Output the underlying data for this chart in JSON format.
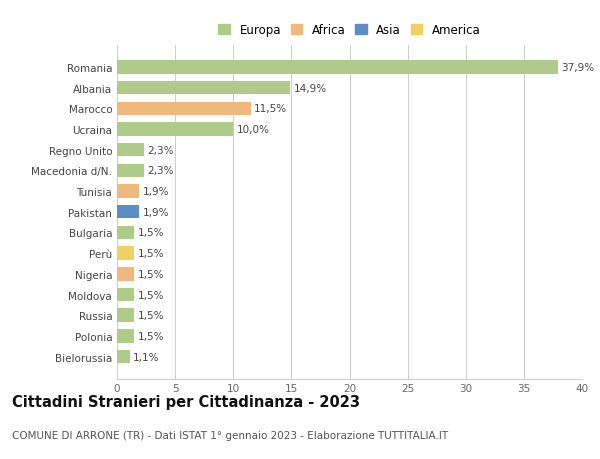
{
  "countries": [
    "Romania",
    "Albania",
    "Marocco",
    "Ucraina",
    "Regno Unito",
    "Macedonia d/N.",
    "Tunisia",
    "Pakistan",
    "Bulgaria",
    "Perù",
    "Nigeria",
    "Moldova",
    "Russia",
    "Polonia",
    "Bielorussia"
  ],
  "values": [
    37.9,
    14.9,
    11.5,
    10.0,
    2.3,
    2.3,
    1.9,
    1.9,
    1.5,
    1.5,
    1.5,
    1.5,
    1.5,
    1.5,
    1.1
  ],
  "labels": [
    "37,9%",
    "14,9%",
    "11,5%",
    "10,0%",
    "2,3%",
    "2,3%",
    "1,9%",
    "1,9%",
    "1,5%",
    "1,5%",
    "1,5%",
    "1,5%",
    "1,5%",
    "1,5%",
    "1,1%"
  ],
  "continents": [
    "Europa",
    "Europa",
    "Africa",
    "Europa",
    "Europa",
    "Europa",
    "Africa",
    "Asia",
    "Europa",
    "America",
    "Africa",
    "Europa",
    "Europa",
    "Europa",
    "Europa"
  ],
  "colors": {
    "Europa": "#aecb8a",
    "Africa": "#f0b87a",
    "Asia": "#5b8ec4",
    "America": "#f0d060"
  },
  "title": "Cittadini Stranieri per Cittadinanza - 2023",
  "subtitle": "COMUNE DI ARRONE (TR) - Dati ISTAT 1° gennaio 2023 - Elaborazione TUTTITALIA.IT",
  "xlim": [
    0,
    40
  ],
  "xticks": [
    0,
    5,
    10,
    15,
    20,
    25,
    30,
    35,
    40
  ],
  "background_color": "#ffffff",
  "bar_height": 0.65,
  "grid_color": "#cccccc",
  "label_fontsize": 7.5,
  "tick_fontsize": 7.5,
  "title_fontsize": 10.5,
  "subtitle_fontsize": 7.5,
  "legend_entries": [
    "Europa",
    "Africa",
    "Asia",
    "America"
  ]
}
